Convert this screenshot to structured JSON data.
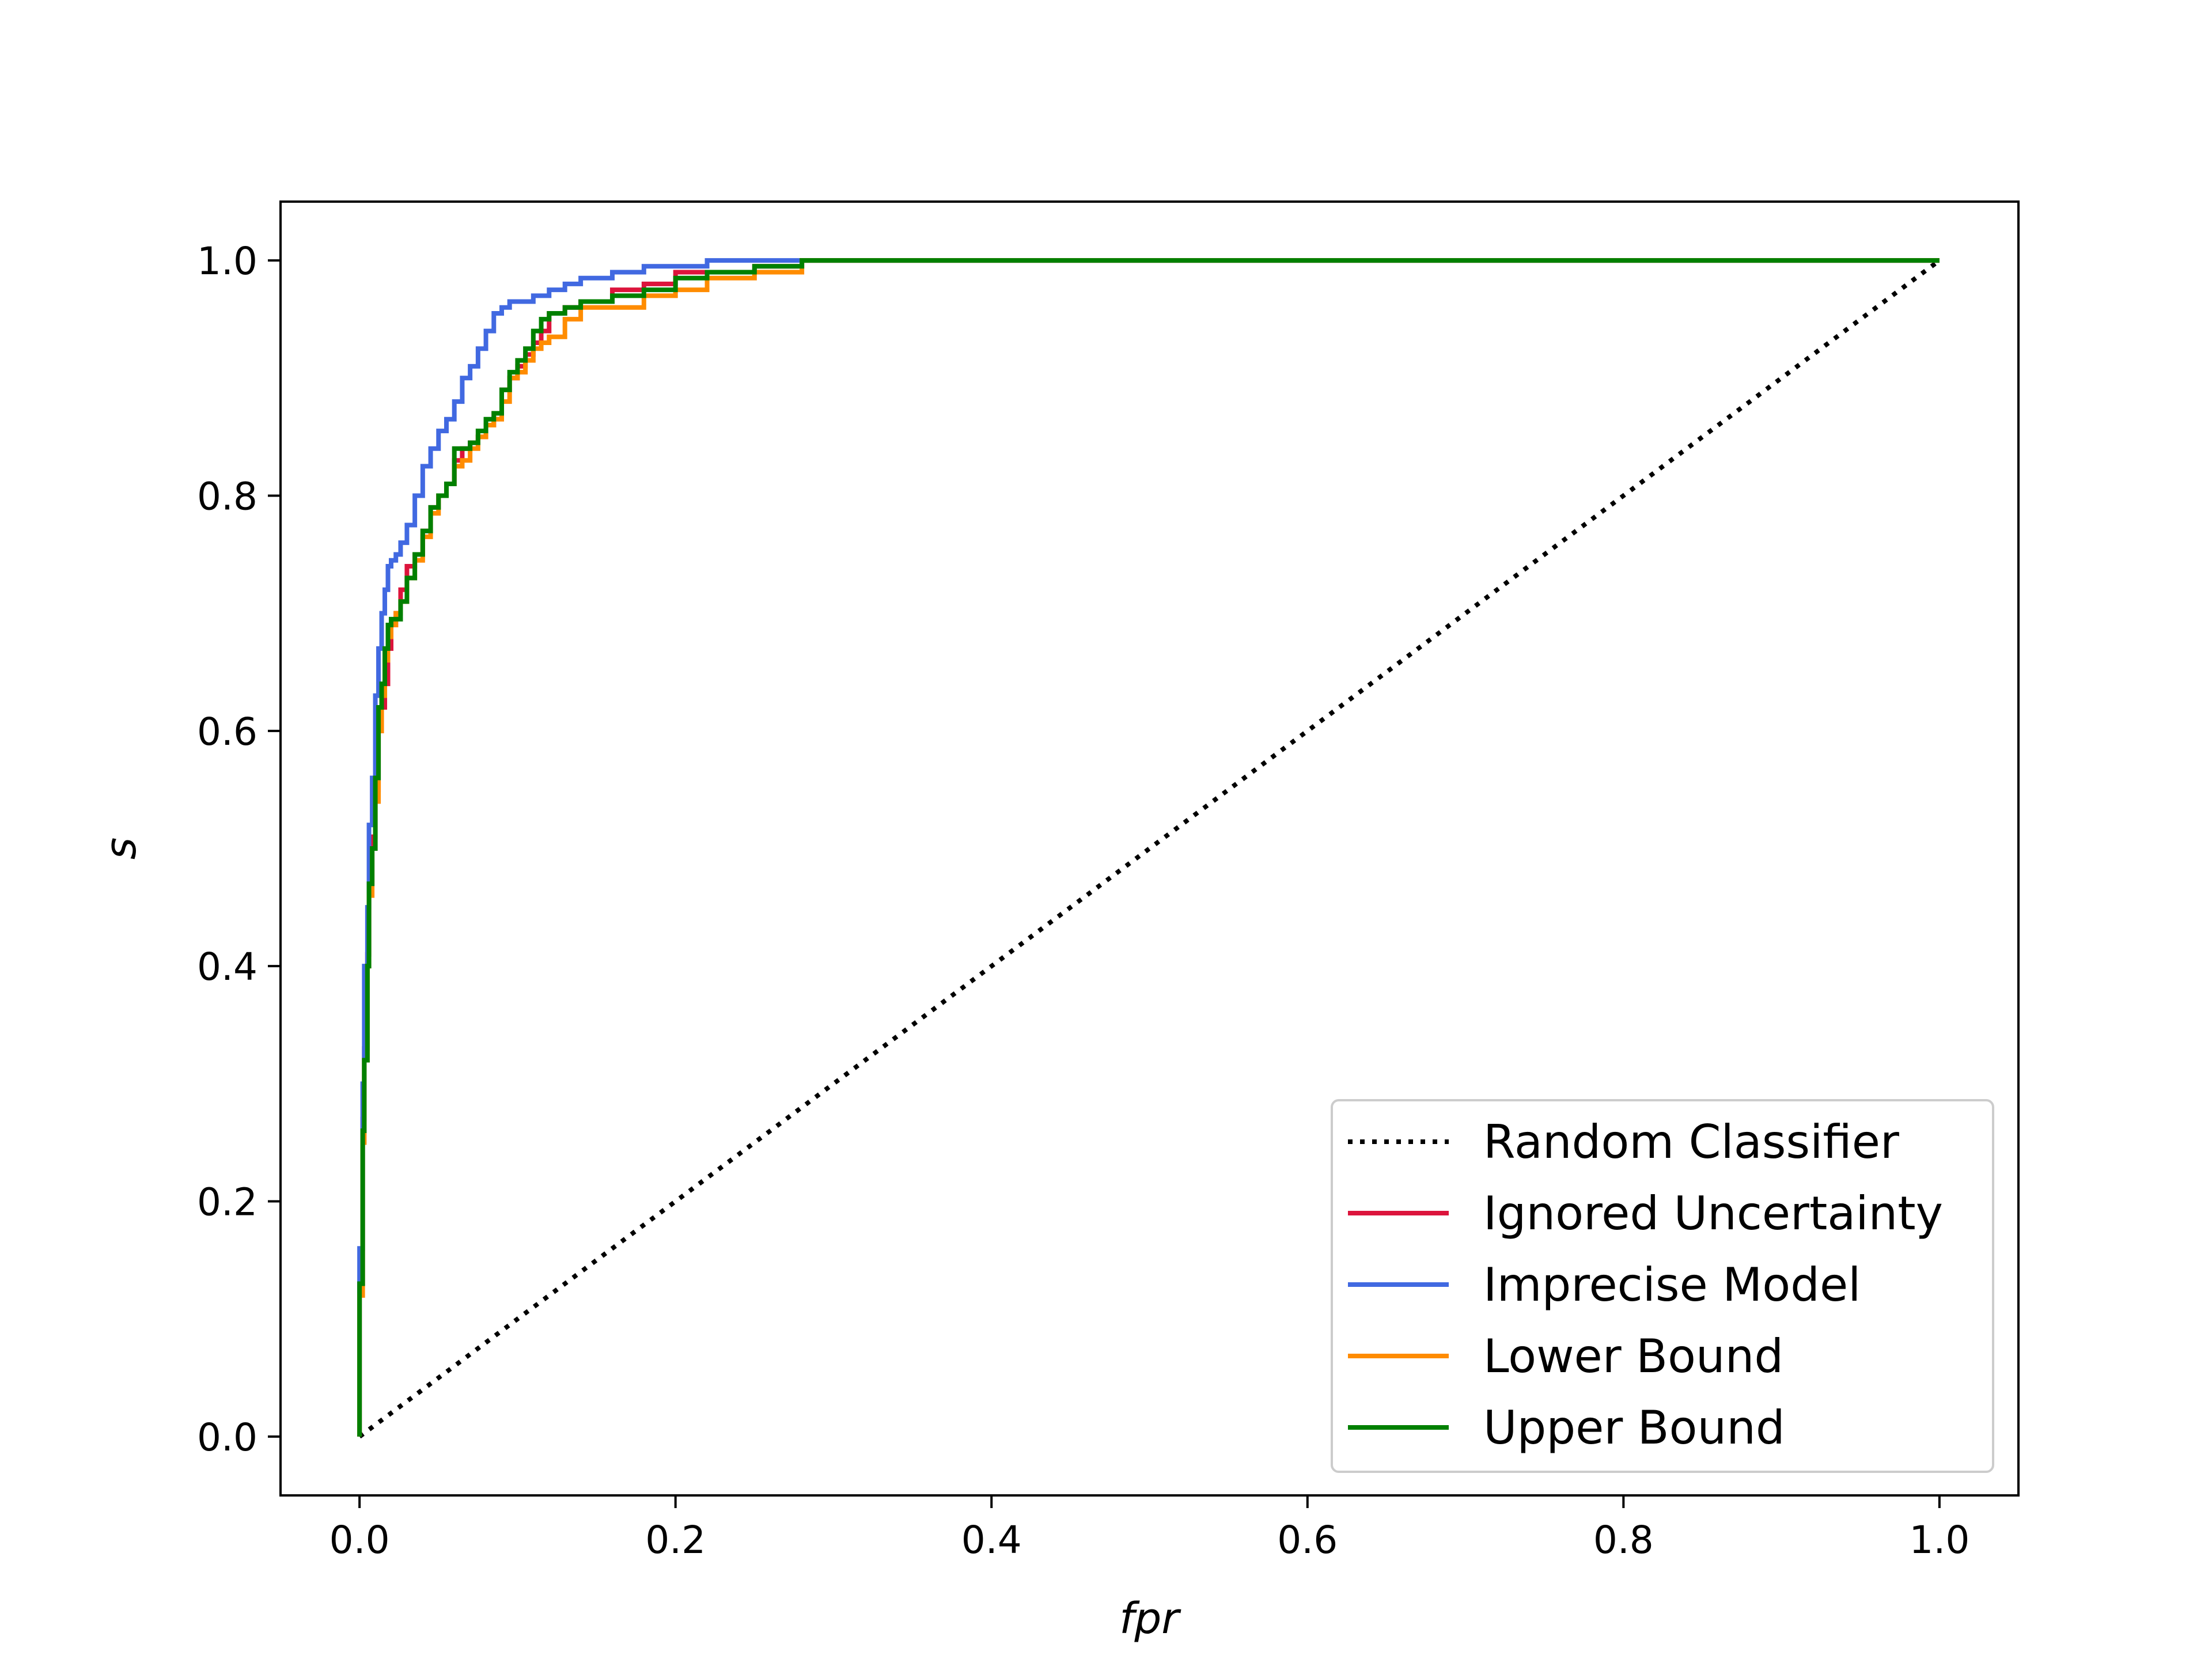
{
  "chart_data": {
    "type": "line",
    "title": "",
    "xlabel": "fpr",
    "ylabel": "s",
    "xlim": [
      -0.05,
      1.05
    ],
    "ylim": [
      -0.05,
      1.05
    ],
    "xticks": [
      0.0,
      0.2,
      0.4,
      0.6,
      0.8,
      1.0
    ],
    "yticks": [
      0.0,
      0.2,
      0.4,
      0.6,
      0.8,
      1.0
    ],
    "xtick_labels": [
      "0.0",
      "0.2",
      "0.4",
      "0.6",
      "0.8",
      "1.0"
    ],
    "ytick_labels": [
      "0.0",
      "0.2",
      "0.4",
      "0.6",
      "0.8",
      "1.0"
    ],
    "grid": false,
    "legend_position": "bottom-right",
    "series": [
      {
        "name": "Random Classifier",
        "color": "#000000",
        "style": "dotted",
        "x": [
          0.0,
          1.0
        ],
        "y": [
          0.0,
          1.0
        ]
      },
      {
        "name": "Ignored Uncertainty",
        "color": "#dc143c",
        "style": "solid",
        "x": [
          0.0,
          0.002,
          0.003,
          0.005,
          0.006,
          0.008,
          0.01,
          0.012,
          0.014,
          0.016,
          0.018,
          0.02,
          0.023,
          0.026,
          0.03,
          0.035,
          0.04,
          0.045,
          0.05,
          0.055,
          0.06,
          0.065,
          0.07,
          0.075,
          0.08,
          0.085,
          0.09,
          0.095,
          0.1,
          0.105,
          0.11,
          0.115,
          0.12,
          0.13,
          0.14,
          0.16,
          0.18,
          0.2,
          0.22,
          0.25,
          0.28,
          0.31,
          1.0
        ],
        "y": [
          0.0,
          0.13,
          0.27,
          0.33,
          0.41,
          0.47,
          0.51,
          0.55,
          0.6,
          0.62,
          0.64,
          0.67,
          0.69,
          0.7,
          0.72,
          0.74,
          0.75,
          0.77,
          0.79,
          0.8,
          0.81,
          0.83,
          0.84,
          0.845,
          0.85,
          0.86,
          0.87,
          0.89,
          0.9,
          0.91,
          0.92,
          0.93,
          0.94,
          0.955,
          0.96,
          0.965,
          0.975,
          0.98,
          0.99,
          0.99,
          0.995,
          1.0,
          1.0
        ]
      },
      {
        "name": "Imprecise Model",
        "color": "#4169e1",
        "style": "solid",
        "x": [
          0.0,
          0.002,
          0.003,
          0.005,
          0.006,
          0.008,
          0.01,
          0.012,
          0.014,
          0.016,
          0.018,
          0.02,
          0.023,
          0.026,
          0.03,
          0.035,
          0.04,
          0.045,
          0.05,
          0.055,
          0.06,
          0.065,
          0.07,
          0.075,
          0.08,
          0.085,
          0.09,
          0.095,
          0.1,
          0.11,
          0.12,
          0.13,
          0.14,
          0.16,
          0.18,
          0.2,
          0.22,
          0.25,
          0.28,
          0.3,
          1.0
        ],
        "y": [
          0.0,
          0.16,
          0.3,
          0.4,
          0.45,
          0.52,
          0.56,
          0.63,
          0.67,
          0.7,
          0.72,
          0.74,
          0.745,
          0.75,
          0.76,
          0.775,
          0.8,
          0.825,
          0.84,
          0.855,
          0.865,
          0.88,
          0.9,
          0.91,
          0.925,
          0.94,
          0.955,
          0.96,
          0.965,
          0.965,
          0.97,
          0.975,
          0.98,
          0.985,
          0.99,
          0.995,
          0.995,
          1.0,
          1.0,
          1.0,
          1.0
        ]
      },
      {
        "name": "Lower Bound",
        "color": "#ff8c00",
        "style": "solid",
        "x": [
          0.0,
          0.002,
          0.003,
          0.005,
          0.006,
          0.008,
          0.01,
          0.012,
          0.014,
          0.016,
          0.018,
          0.02,
          0.023,
          0.026,
          0.03,
          0.035,
          0.04,
          0.045,
          0.05,
          0.055,
          0.06,
          0.065,
          0.07,
          0.075,
          0.08,
          0.085,
          0.09,
          0.095,
          0.1,
          0.105,
          0.11,
          0.115,
          0.12,
          0.13,
          0.14,
          0.16,
          0.18,
          0.2,
          0.22,
          0.25,
          0.28,
          0.31,
          1.0
        ],
        "y": [
          0.0,
          0.12,
          0.25,
          0.32,
          0.4,
          0.46,
          0.5,
          0.54,
          0.6,
          0.63,
          0.66,
          0.68,
          0.69,
          0.7,
          0.71,
          0.73,
          0.745,
          0.765,
          0.785,
          0.8,
          0.81,
          0.825,
          0.83,
          0.84,
          0.85,
          0.86,
          0.865,
          0.88,
          0.9,
          0.905,
          0.915,
          0.925,
          0.93,
          0.935,
          0.95,
          0.96,
          0.96,
          0.97,
          0.975,
          0.985,
          0.99,
          1.0,
          1.0
        ]
      },
      {
        "name": "Upper Bound",
        "color": "#008000",
        "style": "solid",
        "x": [
          0.0,
          0.002,
          0.003,
          0.005,
          0.006,
          0.008,
          0.01,
          0.012,
          0.014,
          0.016,
          0.018,
          0.02,
          0.023,
          0.026,
          0.03,
          0.035,
          0.04,
          0.045,
          0.05,
          0.055,
          0.06,
          0.065,
          0.07,
          0.075,
          0.08,
          0.085,
          0.09,
          0.095,
          0.1,
          0.105,
          0.11,
          0.115,
          0.12,
          0.13,
          0.14,
          0.16,
          0.18,
          0.2,
          0.22,
          0.25,
          0.28,
          0.31,
          1.0
        ],
        "y": [
          0.0,
          0.13,
          0.26,
          0.32,
          0.4,
          0.47,
          0.5,
          0.56,
          0.62,
          0.64,
          0.67,
          0.69,
          0.695,
          0.695,
          0.71,
          0.73,
          0.75,
          0.77,
          0.79,
          0.8,
          0.81,
          0.84,
          0.84,
          0.845,
          0.855,
          0.865,
          0.87,
          0.89,
          0.905,
          0.915,
          0.925,
          0.94,
          0.95,
          0.955,
          0.96,
          0.965,
          0.97,
          0.975,
          0.985,
          0.99,
          0.995,
          1.0,
          1.0
        ]
      }
    ]
  }
}
